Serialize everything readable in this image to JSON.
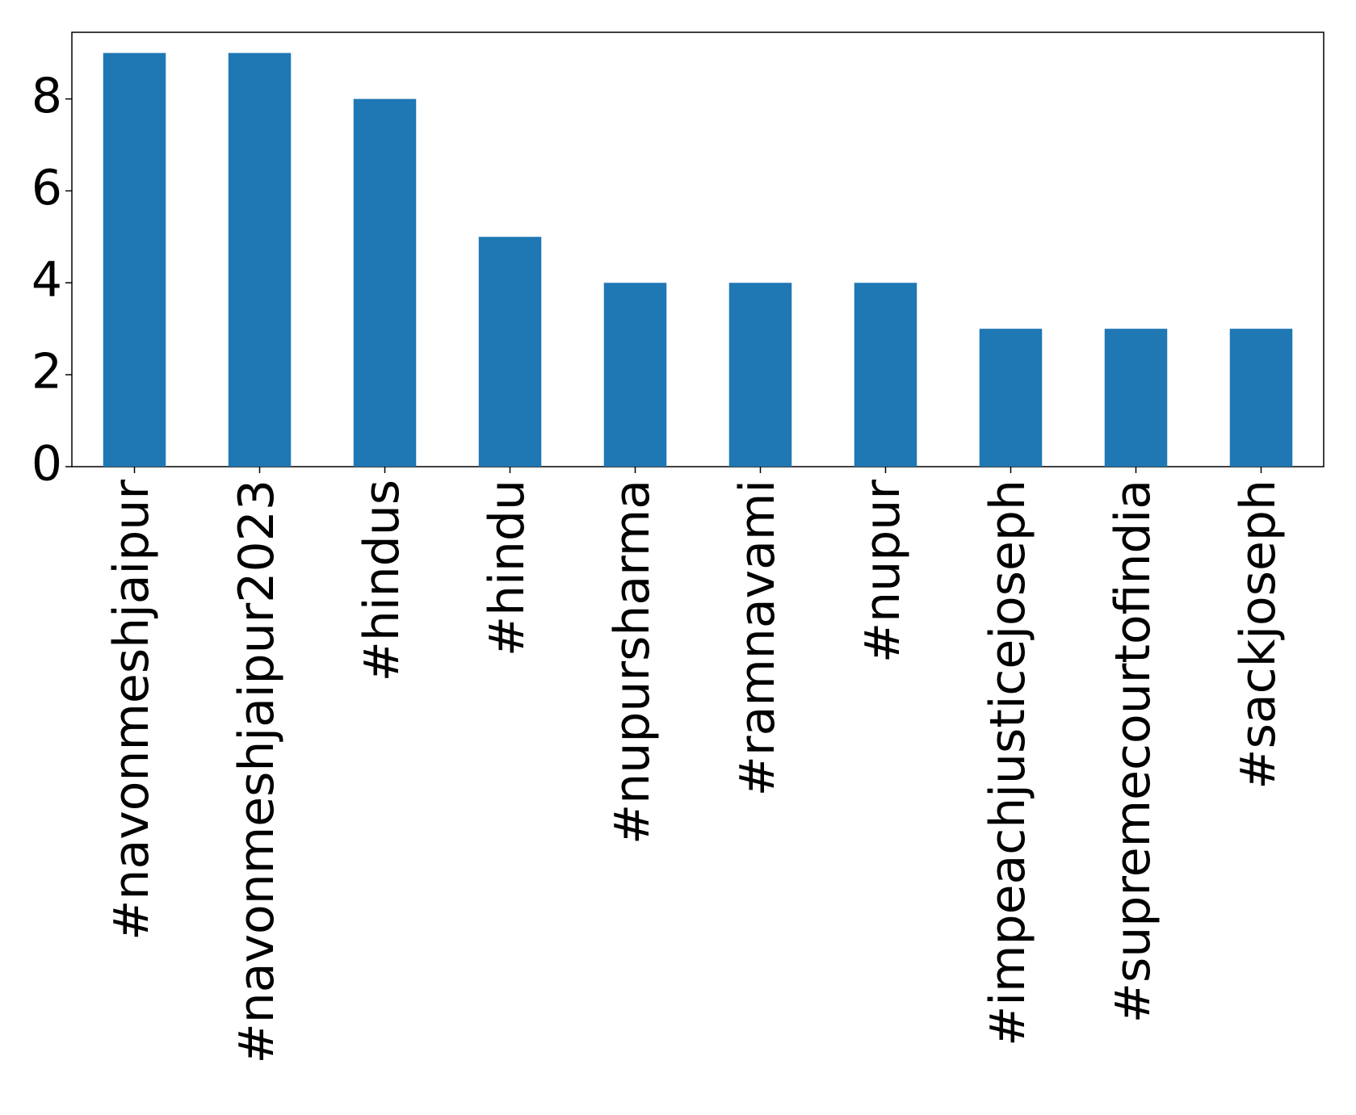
{
  "chart_data": {
    "type": "bar",
    "categories": [
      "#navonmeshjaipur",
      "#navonmeshjaipur2023",
      "#hindus",
      "#hindu",
      "#nupursharma",
      "#ramnavami",
      "#nupur",
      "#impeachjusticejoseph",
      "#supremecourtofindia",
      "#sackjoseph"
    ],
    "values": [
      9,
      9,
      8,
      5,
      4,
      4,
      4,
      3,
      3,
      3
    ],
    "color": "#1f77b4",
    "ylim": [
      0,
      9.45
    ],
    "yticks": [
      0,
      2,
      4,
      6,
      8
    ],
    "grid": false
  }
}
